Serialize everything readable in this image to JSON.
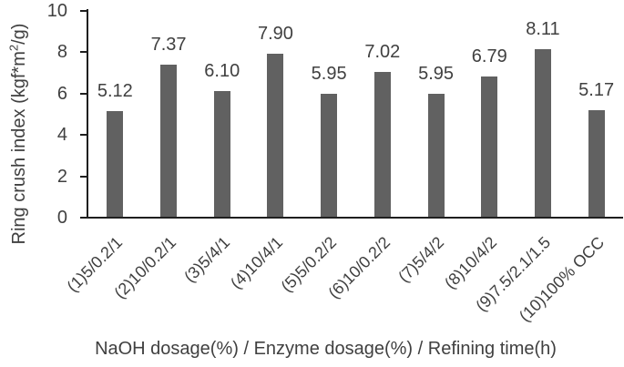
{
  "chart_data": {
    "type": "bar",
    "title": "",
    "categories": [
      "(1)5/0.2/1",
      "(2)10/0.2/1",
      "(3)5/4/1",
      "(4)10/4/1",
      "(5)5/0.2/2",
      "(6)10/0.2/2",
      "(7)5/4/2",
      "(8)10/4/2",
      "(9)7.5/2.1/1.5",
      "(10)100% OCC"
    ],
    "values": [
      5.12,
      7.37,
      6.1,
      7.9,
      5.95,
      7.02,
      5.95,
      6.79,
      8.11,
      5.17
    ],
    "value_labels": [
      "5.12",
      "7.37",
      "6.10",
      "7.90",
      "5.95",
      "7.02",
      "5.95",
      "6.79",
      "8.11",
      "5.17"
    ],
    "xlabel": "NaOH dosage(%) / Enzyme dosage(%) / Refining time(h)",
    "ylabel": "Ring crush index (kgf*m2/g)",
    "ylabel_parts": {
      "prefix": "Ring crush index (kgf*m",
      "sup": "2",
      "suffix": "/g)"
    },
    "ylim": [
      0,
      10
    ],
    "yticks": [
      "0",
      "2",
      "4",
      "6",
      "8",
      "10"
    ],
    "grid": false,
    "legend_position": "none",
    "bar_color": "#616161",
    "axis_color": "#1f1f1f",
    "text_color": "#404040"
  }
}
